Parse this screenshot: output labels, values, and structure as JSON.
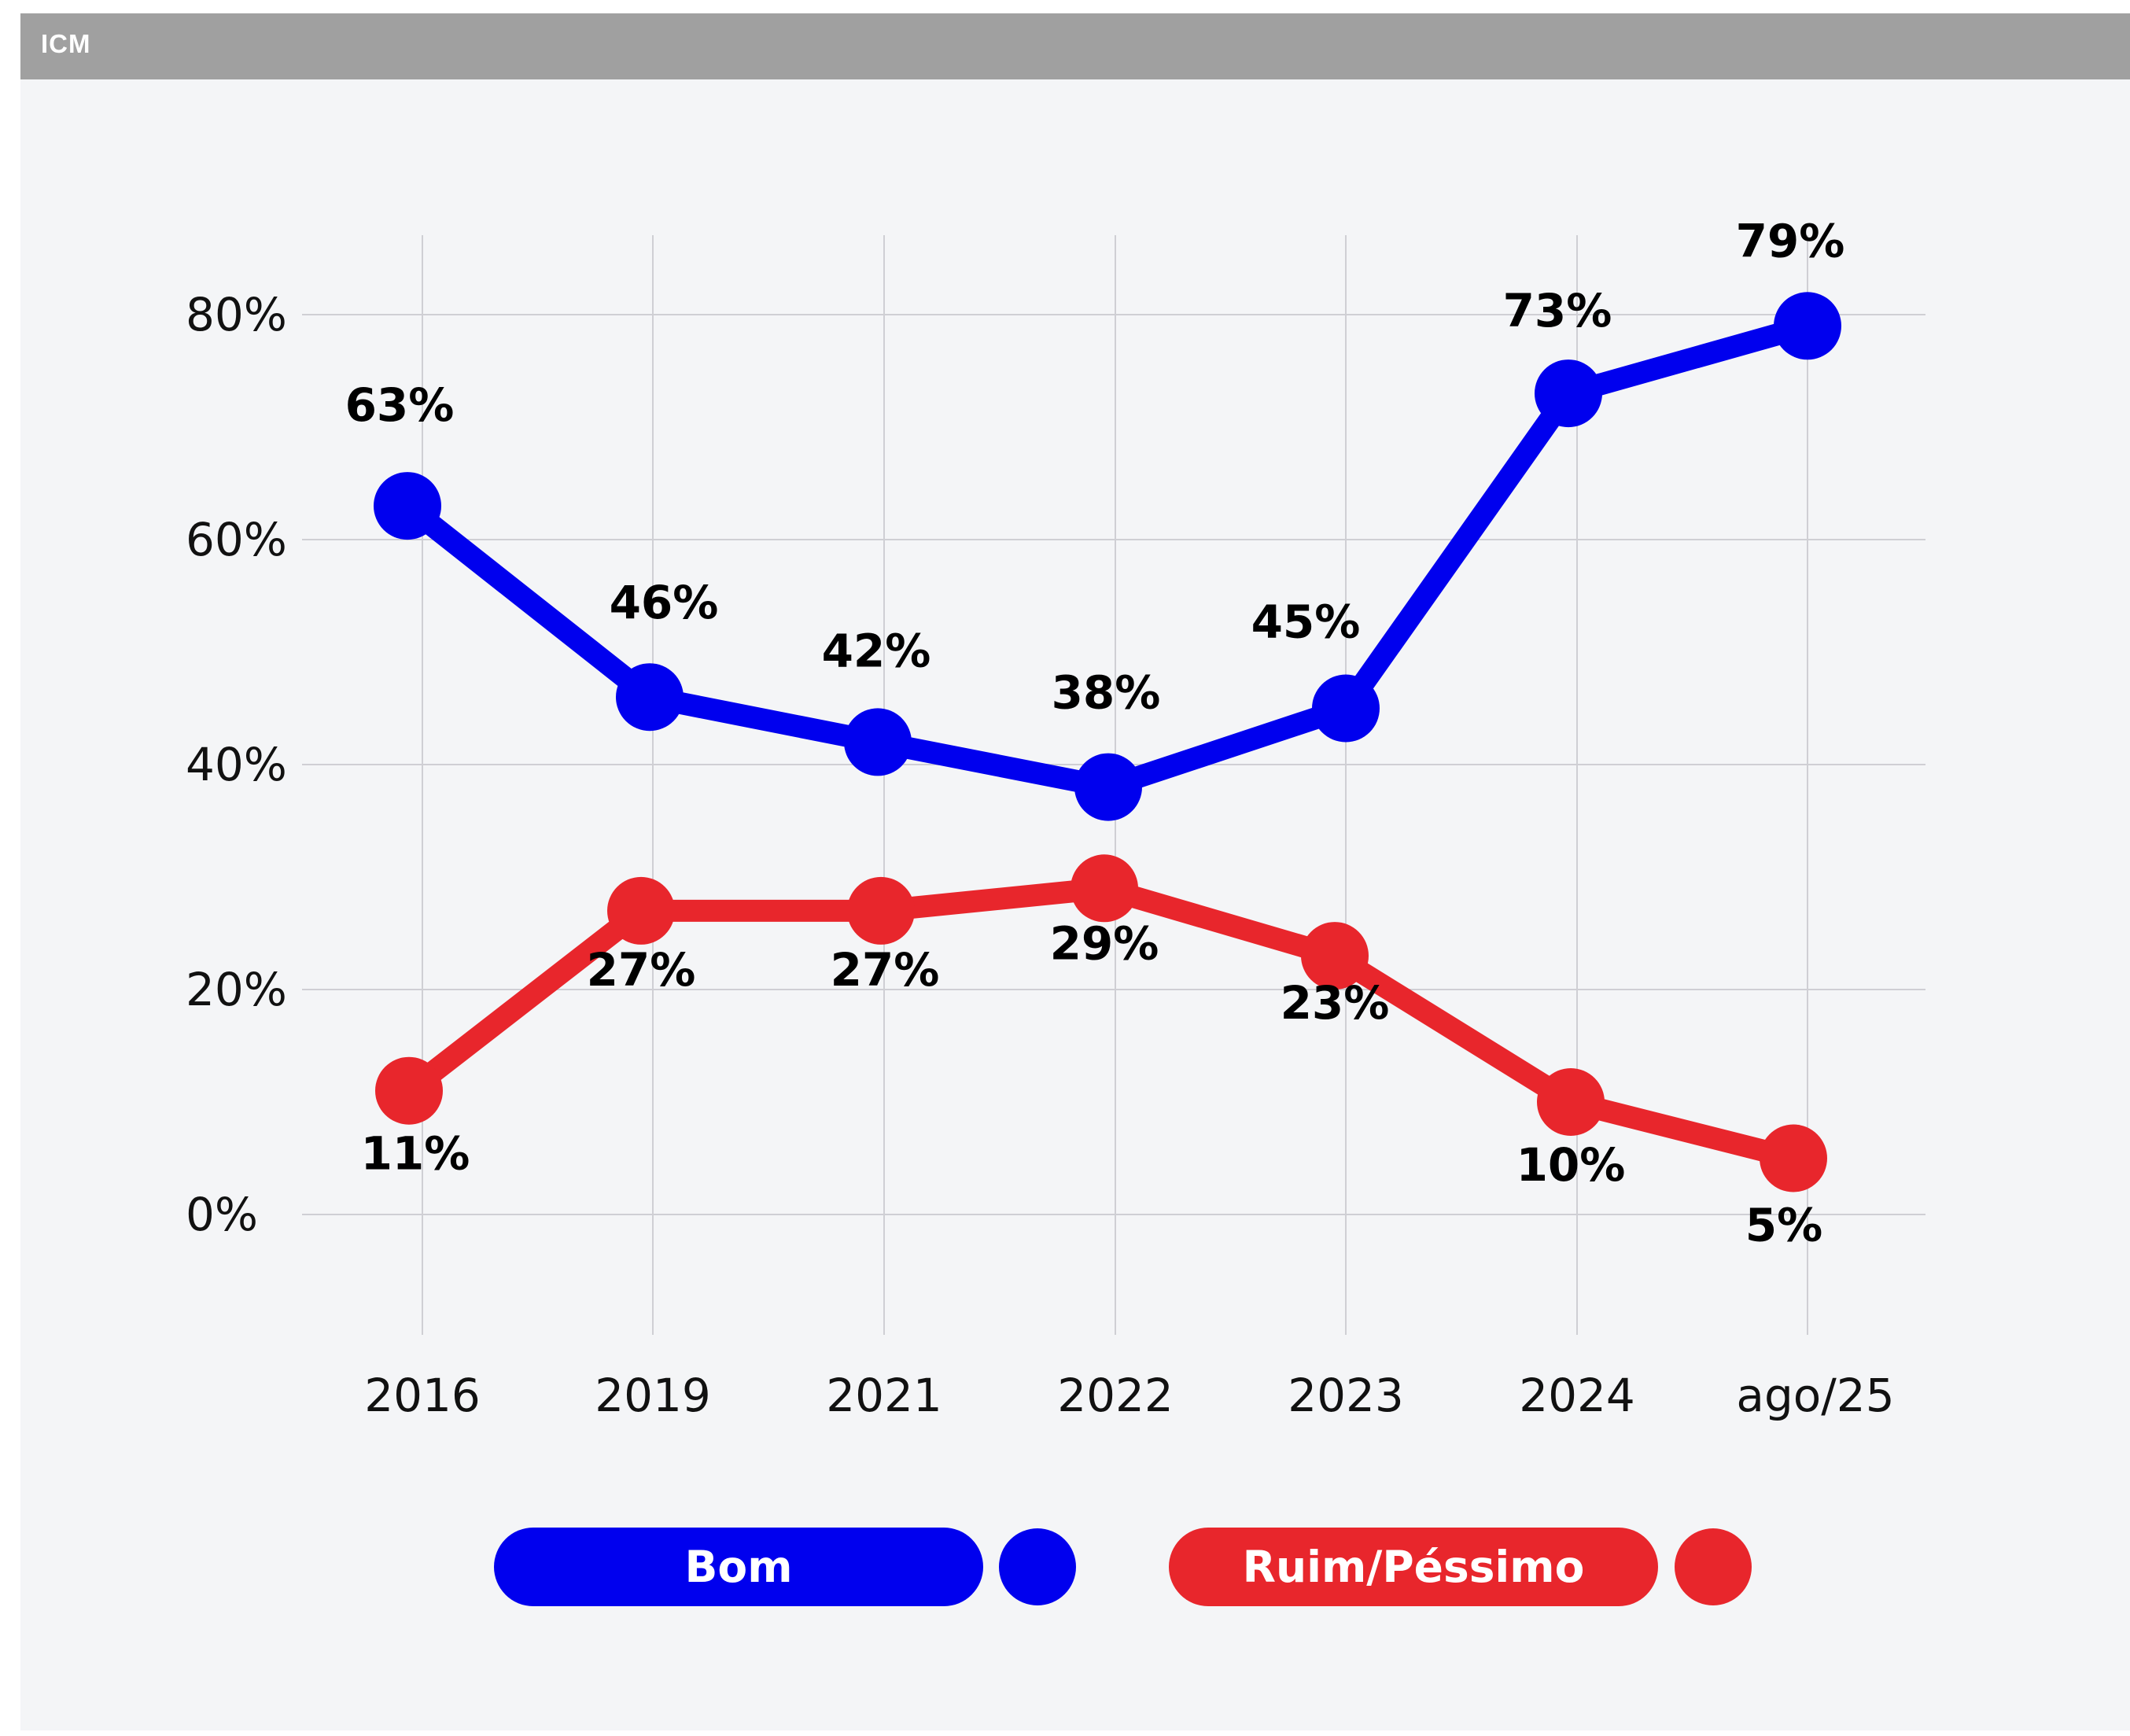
{
  "header": {
    "title": "ICM"
  },
  "colors": {
    "bom": "#0000ee",
    "ruim": "#e8262c",
    "grid": "#cfcfd4",
    "header": "#a0a0a0",
    "background": "#f4f5f7"
  },
  "legend": {
    "bom_label": "Bom",
    "ruim_label": "Ruim/Péssimo"
  },
  "chart_data": {
    "type": "line",
    "title": "",
    "xlabel": "",
    "ylabel": "",
    "categories": [
      "2016",
      "2019",
      "2021",
      "2022",
      "2023",
      "2024",
      "ago/25"
    ],
    "y_ticks": [
      "0%",
      "20%",
      "40%",
      "60%",
      "80%"
    ],
    "ylim": [
      0,
      80
    ],
    "grid": true,
    "legend_position": "bottom",
    "series": [
      {
        "name": "Bom",
        "color": "#0000ee",
        "values": [
          63,
          46,
          42,
          38,
          45,
          73,
          79
        ],
        "labels": [
          "63%",
          "46%",
          "42%",
          "38%",
          "45%",
          "73%",
          "79%"
        ]
      },
      {
        "name": "Ruim/Péssimo",
        "color": "#e8262c",
        "values": [
          11,
          27,
          27,
          29,
          23,
          10,
          5
        ],
        "labels": [
          "11%",
          "27%",
          "27%",
          "29%",
          "23%",
          "10%",
          "5%"
        ]
      }
    ]
  }
}
